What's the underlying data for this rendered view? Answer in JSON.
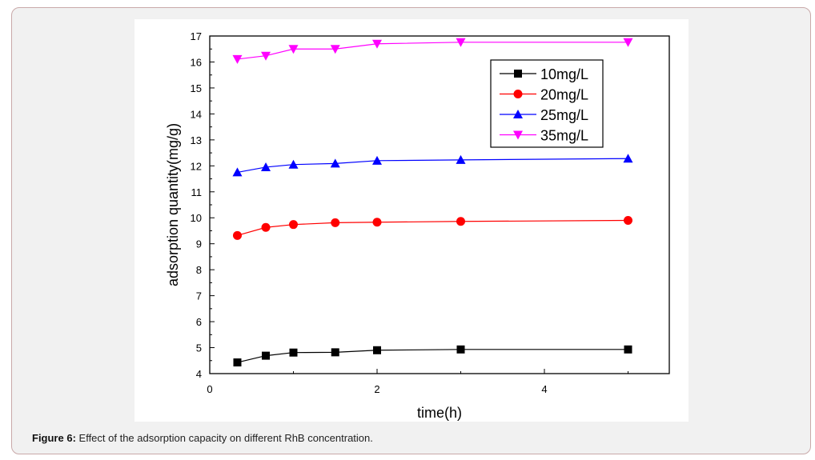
{
  "caption": {
    "label": "Figure 6:",
    "text": " Effect of the adsorption capacity on different RhB concentration."
  },
  "chart_data": {
    "type": "line",
    "xlabel": "time(h)",
    "ylabel": "adsorption quantity(mg/g)",
    "xlim": [
      0,
      5.5
    ],
    "ylim": [
      4,
      17
    ],
    "xticks": [
      0,
      2,
      4
    ],
    "yticks": [
      4,
      5,
      6,
      7,
      8,
      9,
      10,
      11,
      12,
      13,
      14,
      15,
      16,
      17
    ],
    "grid": false,
    "legend": "top-right",
    "x": [
      0.33,
      0.67,
      1,
      1.5,
      2,
      3,
      5
    ],
    "series": [
      {
        "name": "10mg/L",
        "color": "#000000",
        "marker": "square",
        "values": [
          4.43,
          4.69,
          4.81,
          4.82,
          4.9,
          4.93,
          4.93
        ]
      },
      {
        "name": "20mg/L",
        "color": "#ff0000",
        "marker": "circle",
        "values": [
          9.32,
          9.63,
          9.74,
          9.81,
          9.83,
          9.86,
          9.9
        ]
      },
      {
        "name": "25mg/L",
        "color": "#0000ff",
        "marker": "triangle-up",
        "values": [
          11.75,
          11.95,
          12.05,
          12.09,
          12.2,
          12.23,
          12.28
        ]
      },
      {
        "name": "35mg/L",
        "color": "#ff00ff",
        "marker": "triangle-down",
        "values": [
          16.11,
          16.24,
          16.5,
          16.5,
          16.7,
          16.76,
          16.76
        ]
      }
    ]
  }
}
